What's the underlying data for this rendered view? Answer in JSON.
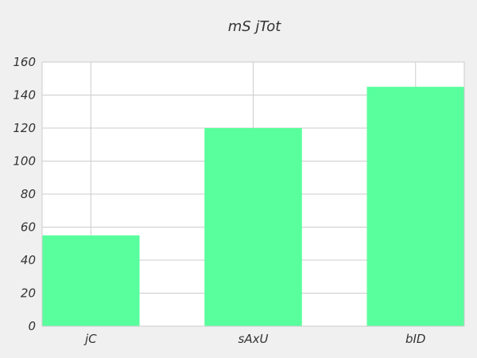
{
  "chart_data": {
    "type": "bar",
    "title": "mS jTot",
    "xlabel": "",
    "ylabel": "",
    "categories": [
      "jC",
      "sAxU",
      "bID"
    ],
    "values": [
      55,
      120,
      145
    ],
    "ylim": [
      0,
      160
    ],
    "yticks": [
      0,
      20,
      40,
      60,
      80,
      100,
      120,
      140,
      160
    ],
    "grid": true,
    "legend": "none",
    "colors": {
      "bar": "#58ff9c",
      "background": "#f0f0f0",
      "plot_background": "#ffffff",
      "grid": "#cccccc",
      "axis": "#cccccc",
      "text": "#333333"
    }
  }
}
